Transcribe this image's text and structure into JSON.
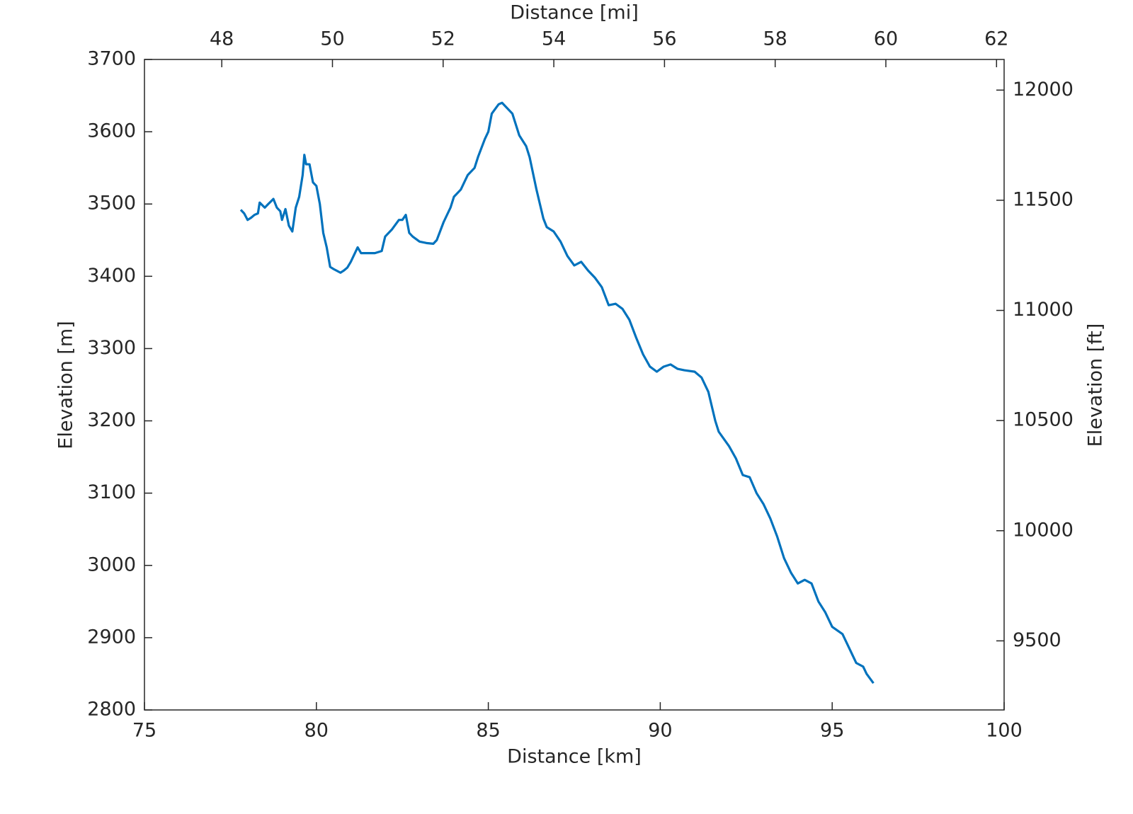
{
  "chart_data": {
    "type": "line",
    "xlabel": "Distance [km]",
    "ylabel": "Elevation [m]",
    "x2label": "Distance [mi]",
    "y2label": "Elevation [ft]",
    "xlim": [
      75,
      100
    ],
    "xticks": [
      75,
      80,
      85,
      90,
      95,
      100
    ],
    "ylim": [
      2800,
      3700
    ],
    "yticks": [
      2800,
      2900,
      3000,
      3100,
      3200,
      3300,
      3400,
      3500,
      3600,
      3700
    ],
    "x2lim": [
      46.6028,
      62.1371
    ],
    "x2ticks": [
      48,
      50,
      52,
      54,
      56,
      58,
      60,
      62
    ],
    "y2lim": [
      9186.4,
      12139.1
    ],
    "y2ticks": [
      9500,
      10000,
      10500,
      11000,
      11500,
      12000
    ],
    "x": [
      77.8,
      77.9,
      78.0,
      78.1,
      78.2,
      78.3,
      78.35,
      78.5,
      78.6,
      78.75,
      78.85,
      78.95,
      79.0,
      79.1,
      79.2,
      79.3,
      79.4,
      79.5,
      79.6,
      79.65,
      79.7,
      79.8,
      79.9,
      80.0,
      80.1,
      80.2,
      80.3,
      80.4,
      80.5,
      80.7,
      80.8,
      80.9,
      81.0,
      81.2,
      81.3,
      81.5,
      81.7,
      81.9,
      82.0,
      82.2,
      82.4,
      82.5,
      82.6,
      82.7,
      82.8,
      83.0,
      83.2,
      83.4,
      83.5,
      83.7,
      83.9,
      84.0,
      84.2,
      84.4,
      84.6,
      84.7,
      84.9,
      85.0,
      85.1,
      85.3,
      85.4,
      85.5,
      85.7,
      85.9,
      86.1,
      86.2,
      86.4,
      86.5,
      86.6,
      86.7,
      86.9,
      87.1,
      87.3,
      87.5,
      87.7,
      87.9,
      88.1,
      88.3,
      88.5,
      88.7,
      88.9,
      89.1,
      89.3,
      89.5,
      89.7,
      89.9,
      90.1,
      90.3,
      90.5,
      90.7,
      91.0,
      91.2,
      91.4,
      91.6,
      91.7,
      92.0,
      92.2,
      92.4,
      92.6,
      92.8,
      93.0,
      93.2,
      93.4,
      93.6,
      93.8,
      94.0,
      94.2,
      94.4,
      94.6,
      94.8,
      95.0,
      95.3,
      95.5,
      95.7,
      95.9,
      96.0,
      96.2
    ],
    "series": [
      {
        "color": "#0072bd",
        "values": [
          3492,
          3487,
          3478,
          3481,
          3485,
          3487,
          3502,
          3495,
          3500,
          3507,
          3495,
          3490,
          3478,
          3493,
          3470,
          3462,
          3495,
          3510,
          3540,
          3568,
          3555,
          3555,
          3530,
          3525,
          3500,
          3460,
          3440,
          3413,
          3410,
          3405,
          3408,
          3412,
          3420,
          3440,
          3432,
          3432,
          3432,
          3435,
          3455,
          3465,
          3478,
          3478,
          3485,
          3460,
          3455,
          3448,
          3446,
          3445,
          3450,
          3475,
          3495,
          3510,
          3520,
          3540,
          3550,
          3565,
          3590,
          3600,
          3625,
          3638,
          3640,
          3635,
          3625,
          3595,
          3580,
          3565,
          3520,
          3500,
          3480,
          3468,
          3462,
          3448,
          3428,
          3415,
          3420,
          3408,
          3398,
          3385,
          3360,
          3362,
          3355,
          3340,
          3315,
          3292,
          3275,
          3268,
          3275,
          3278,
          3272,
          3270,
          3268,
          3260,
          3240,
          3200,
          3185,
          3165,
          3148,
          3125,
          3122,
          3100,
          3085,
          3065,
          3040,
          3010,
          2990,
          2975,
          2980,
          2975,
          2950,
          2935,
          2915,
          2905,
          2885,
          2865,
          2860,
          2850,
          2837
        ]
      }
    ]
  }
}
